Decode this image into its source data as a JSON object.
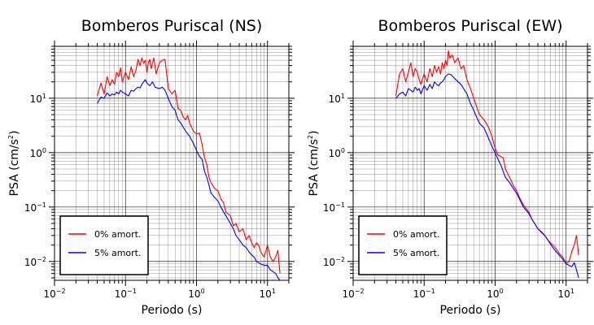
{
  "chart_data": [
    {
      "type": "line",
      "title": "Bomberos Puriscal (NS)",
      "xlabel": "Periodo (s)",
      "ylabel_main": "PSA (cm/s",
      "ylabel_sup": "2",
      "ylabel_close": ")",
      "xscale": "log",
      "yscale": "log",
      "xlim": [
        0.01,
        20
      ],
      "ylim": [
        0.0045,
        90
      ],
      "xticks": [
        {
          "base": "10",
          "exp": "−2",
          "v": 0.01
        },
        {
          "base": "10",
          "exp": "−1",
          "v": 0.1
        },
        {
          "base": "10",
          "exp": "0",
          "v": 1
        },
        {
          "base": "10",
          "exp": "1",
          "v": 10
        }
      ],
      "yticks": [
        {
          "base": "10",
          "exp": "−2",
          "v": 0.01
        },
        {
          "base": "10",
          "exp": "−1",
          "v": 0.1
        },
        {
          "base": "10",
          "exp": "0",
          "v": 1
        },
        {
          "base": "10",
          "exp": "1",
          "v": 10
        }
      ],
      "grid": true,
      "legend": "bottom-left",
      "series": [
        {
          "name": "0% amort.",
          "color": "#ff0000",
          "x": [
            0.04,
            0.045,
            0.05,
            0.055,
            0.06,
            0.065,
            0.07,
            0.075,
            0.08,
            0.085,
            0.09,
            0.1,
            0.11,
            0.12,
            0.13,
            0.14,
            0.15,
            0.16,
            0.17,
            0.18,
            0.19,
            0.2,
            0.21,
            0.22,
            0.23,
            0.25,
            0.27,
            0.3,
            0.33,
            0.36,
            0.4,
            0.45,
            0.5,
            0.55,
            0.6,
            0.65,
            0.7,
            0.75,
            0.8,
            0.9,
            1.0,
            1.1,
            1.2,
            1.3,
            1.4,
            1.5,
            1.6,
            1.8,
            2.0,
            2.2,
            2.4,
            2.6,
            3.0,
            3.3,
            3.6,
            4.0,
            4.5,
            5.0,
            5.5,
            6.0,
            6.5,
            7.0,
            7.5,
            8.0,
            9.0,
            10.0,
            11.0,
            12.0,
            13.0,
            14.0,
            15.0
          ],
          "y": [
            11.0,
            19.0,
            12.0,
            25.0,
            17.0,
            22.0,
            18.0,
            30.0,
            25.0,
            36.0,
            20.0,
            30.0,
            22.0,
            38.0,
            25.0,
            32.0,
            52.0,
            40.0,
            55.0,
            44.0,
            50.0,
            30.0,
            45.0,
            52.0,
            35.0,
            55.0,
            28.0,
            45.0,
            50.0,
            52.0,
            15.0,
            12.0,
            14.0,
            6.5,
            6.0,
            4.5,
            4.0,
            4.8,
            3.5,
            2.5,
            2.2,
            2.3,
            1.4,
            0.8,
            0.6,
            0.35,
            0.28,
            0.22,
            0.2,
            0.14,
            0.12,
            0.08,
            0.07,
            0.045,
            0.05,
            0.035,
            0.04,
            0.025,
            0.03,
            0.022,
            0.018,
            0.022,
            0.02,
            0.015,
            0.012,
            0.02,
            0.012,
            0.01,
            0.012,
            0.016,
            0.006
          ]
        },
        {
          "name": "5% amort.",
          "color": "#0000ff",
          "x": [
            0.04,
            0.045,
            0.05,
            0.055,
            0.06,
            0.065,
            0.07,
            0.075,
            0.08,
            0.085,
            0.09,
            0.1,
            0.11,
            0.12,
            0.13,
            0.14,
            0.15,
            0.16,
            0.17,
            0.18,
            0.19,
            0.2,
            0.22,
            0.24,
            0.26,
            0.3,
            0.33,
            0.36,
            0.4,
            0.45,
            0.5,
            0.55,
            0.6,
            0.7,
            0.8,
            0.9,
            1.0,
            1.1,
            1.2,
            1.3,
            1.4,
            1.5,
            1.6,
            1.8,
            2.0,
            2.2,
            2.5,
            3.0,
            3.3,
            3.6,
            4.0,
            4.5,
            5.0,
            5.5,
            6.0,
            6.5,
            7.0,
            8.0,
            9.0,
            10.0,
            11.0,
            12.0,
            13.0,
            14.0,
            15.0
          ],
          "y": [
            8.0,
            10.5,
            10.0,
            12.5,
            11.0,
            12.0,
            11.5,
            13.0,
            12.0,
            14.0,
            13.0,
            12.0,
            11.0,
            14.0,
            13.5,
            15.0,
            16.0,
            15.5,
            18.0,
            20.0,
            22.0,
            19.0,
            17.0,
            20.0,
            16.0,
            15.0,
            16.0,
            14.0,
            10.0,
            7.0,
            6.0,
            4.0,
            3.5,
            2.5,
            2.0,
            1.5,
            1.1,
            0.85,
            0.75,
            0.45,
            0.35,
            0.25,
            0.18,
            0.15,
            0.13,
            0.1,
            0.075,
            0.05,
            0.04,
            0.03,
            0.025,
            0.02,
            0.018,
            0.015,
            0.013,
            0.012,
            0.01,
            0.009,
            0.0085,
            0.0085,
            0.007,
            0.0065,
            0.006,
            0.005,
            0.0045
          ]
        }
      ]
    },
    {
      "type": "line",
      "title": "Bomberos Puriscal (EW)",
      "xlabel": "Periodo (s)",
      "ylabel_main": "PSA (cm/s",
      "ylabel_sup": "2",
      "ylabel_close": ")",
      "xscale": "log",
      "yscale": "log",
      "xlim": [
        0.01,
        20
      ],
      "ylim": [
        0.0045,
        90
      ],
      "xticks": [
        {
          "base": "10",
          "exp": "−2",
          "v": 0.01
        },
        {
          "base": "10",
          "exp": "−1",
          "v": 0.1
        },
        {
          "base": "10",
          "exp": "0",
          "v": 1
        },
        {
          "base": "10",
          "exp": "1",
          "v": 10
        }
      ],
      "yticks": [
        {
          "base": "10",
          "exp": "−2",
          "v": 0.01
        },
        {
          "base": "10",
          "exp": "−1",
          "v": 0.1
        },
        {
          "base": "10",
          "exp": "0",
          "v": 1
        },
        {
          "base": "10",
          "exp": "1",
          "v": 10
        }
      ],
      "grid": true,
      "legend": "bottom-left",
      "series": [
        {
          "name": "0% amort.",
          "color": "#ff0000",
          "x": [
            0.04,
            0.045,
            0.05,
            0.055,
            0.06,
            0.065,
            0.07,
            0.075,
            0.08,
            0.085,
            0.09,
            0.1,
            0.11,
            0.12,
            0.13,
            0.14,
            0.15,
            0.16,
            0.17,
            0.18,
            0.19,
            0.2,
            0.21,
            0.22,
            0.23,
            0.25,
            0.27,
            0.3,
            0.33,
            0.36,
            0.4,
            0.45,
            0.5,
            0.55,
            0.6,
            0.7,
            0.8,
            0.9,
            1.0,
            1.1,
            1.2,
            1.3,
            1.4,
            1.6,
            1.8,
            2.0,
            2.2,
            2.5,
            3.0,
            3.3,
            3.6,
            4.0,
            4.5,
            5.0,
            5.5,
            6.0,
            6.5,
            7.0,
            7.5,
            8.0,
            9.0,
            10.0,
            11.0,
            12.0,
            13.0,
            14.0,
            15.0
          ],
          "y": [
            11.0,
            28.0,
            35.0,
            20.0,
            30.0,
            45.0,
            25.0,
            35.0,
            30.0,
            22.0,
            18.0,
            28.0,
            20.0,
            35.0,
            25.0,
            40.0,
            30.0,
            38.0,
            28.0,
            45.0,
            35.0,
            50.0,
            40.0,
            75.0,
            55.0,
            62.0,
            45.0,
            55.0,
            35.0,
            40.0,
            22.0,
            15.0,
            10.0,
            7.0,
            5.0,
            4.0,
            3.0,
            2.0,
            1.2,
            0.9,
            0.85,
            0.8,
            0.5,
            0.35,
            0.25,
            0.2,
            0.15,
            0.11,
            0.08,
            0.06,
            0.05,
            0.04,
            0.035,
            0.03,
            0.025,
            0.022,
            0.02,
            0.018,
            0.016,
            0.014,
            0.012,
            0.009,
            0.01,
            0.015,
            0.02,
            0.03,
            0.013
          ]
        },
        {
          "name": "5% amort.",
          "color": "#0000ff",
          "x": [
            0.04,
            0.045,
            0.05,
            0.055,
            0.06,
            0.065,
            0.07,
            0.075,
            0.08,
            0.085,
            0.09,
            0.1,
            0.11,
            0.12,
            0.13,
            0.14,
            0.15,
            0.16,
            0.17,
            0.18,
            0.19,
            0.2,
            0.22,
            0.24,
            0.26,
            0.3,
            0.33,
            0.36,
            0.4,
            0.45,
            0.5,
            0.55,
            0.6,
            0.7,
            0.8,
            0.9,
            1.0,
            1.1,
            1.2,
            1.3,
            1.4,
            1.6,
            1.8,
            2.0,
            2.2,
            2.5,
            3.0,
            3.3,
            3.6,
            4.0,
            4.5,
            5.0,
            5.5,
            6.0,
            6.5,
            7.0,
            8.0,
            9.0,
            10.0,
            11.0,
            12.0,
            13.0,
            14.0,
            15.0
          ],
          "y": [
            10.0,
            12.0,
            13.0,
            11.0,
            15.0,
            14.0,
            13.0,
            16.0,
            14.0,
            15.0,
            12.0,
            17.0,
            14.0,
            18.0,
            15.0,
            20.0,
            18.0,
            17.0,
            19.0,
            20.0,
            22.0,
            25.0,
            28.0,
            27.0,
            24.0,
            20.0,
            18.0,
            15.0,
            12.0,
            8.0,
            6.0,
            4.5,
            3.5,
            2.8,
            1.9,
            1.3,
            1.0,
            0.75,
            0.6,
            0.45,
            0.35,
            0.28,
            0.22,
            0.18,
            0.14,
            0.1,
            0.075,
            0.06,
            0.05,
            0.04,
            0.034,
            0.03,
            0.025,
            0.021,
            0.018,
            0.016,
            0.013,
            0.011,
            0.009,
            0.0085,
            0.008,
            0.0095,
            0.007,
            0.005
          ]
        }
      ]
    }
  ]
}
